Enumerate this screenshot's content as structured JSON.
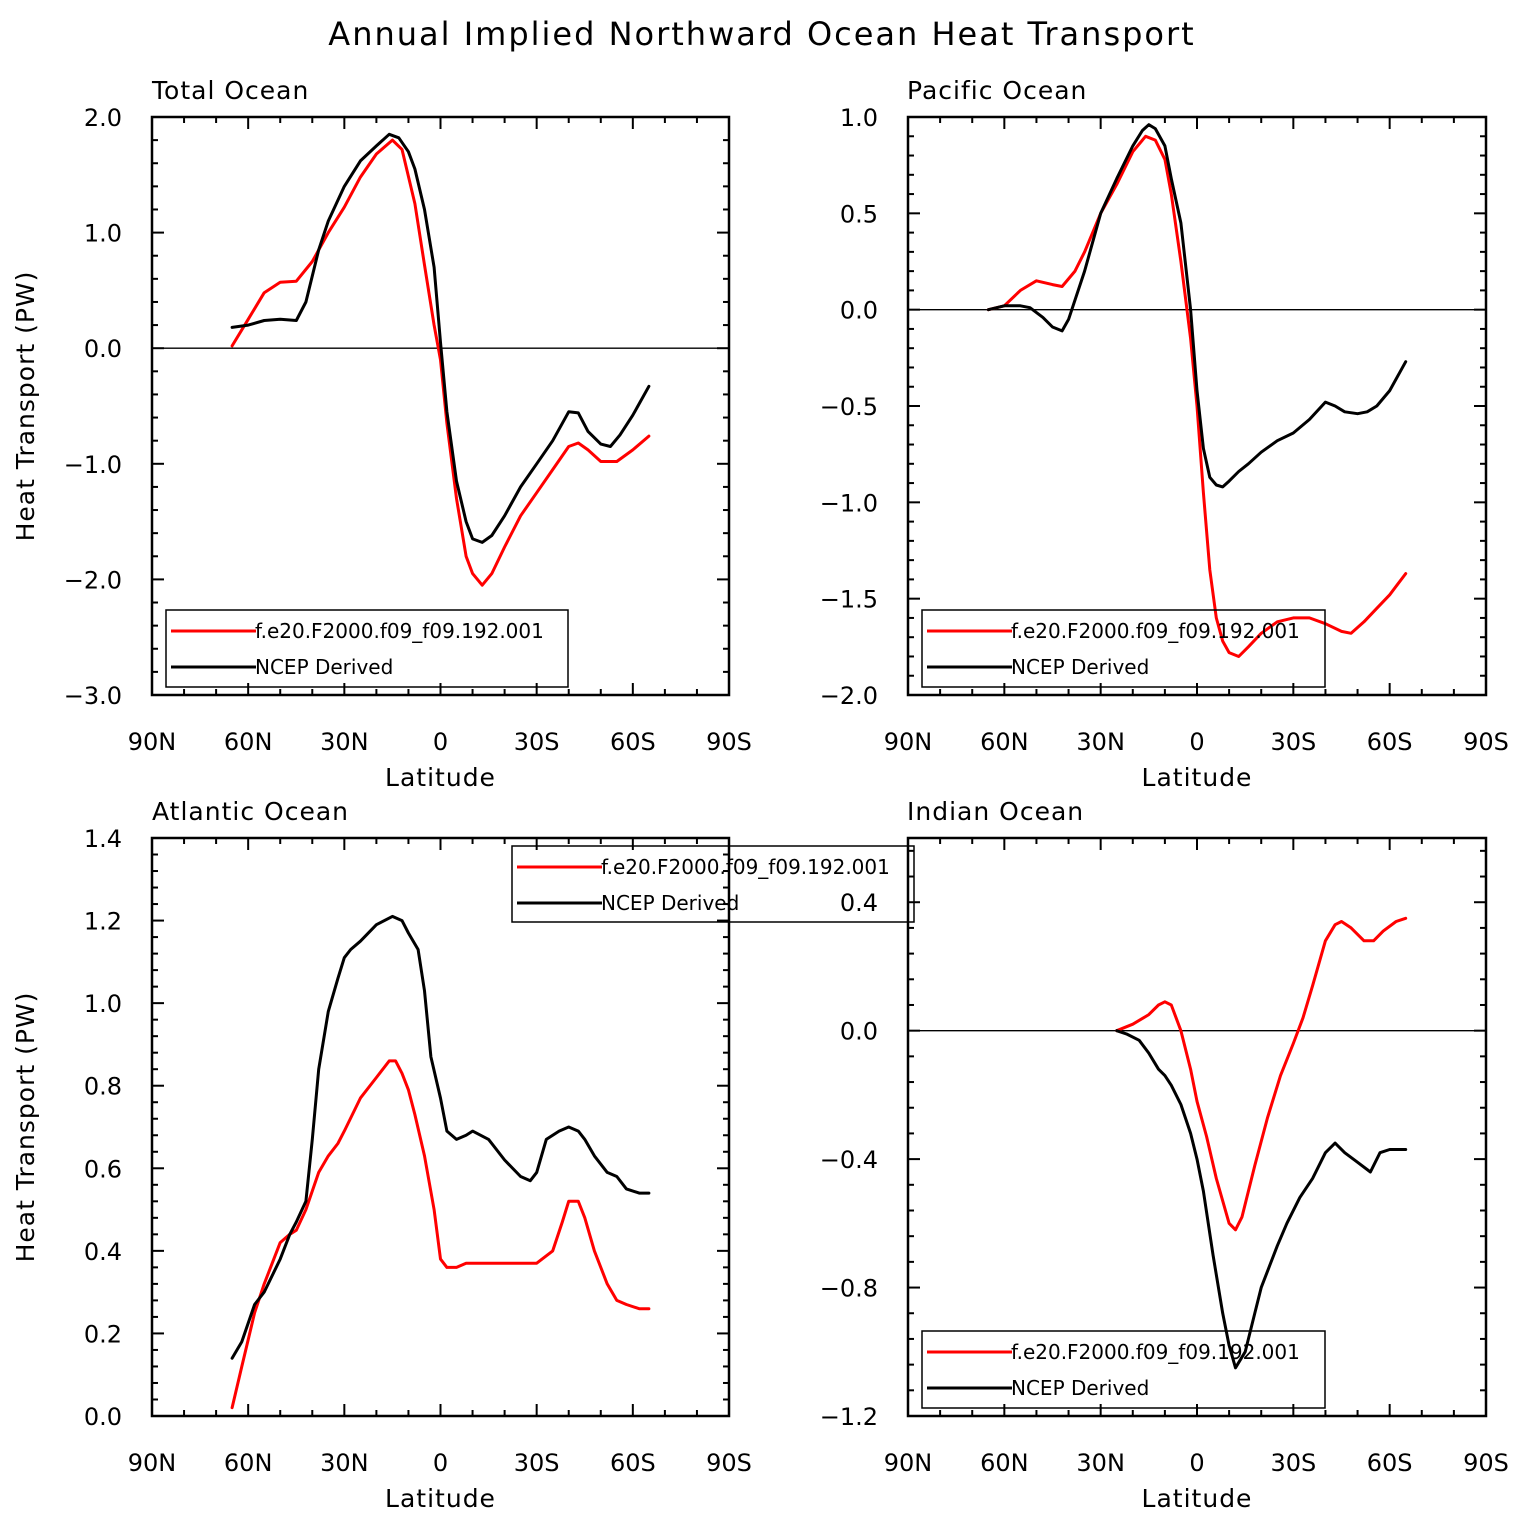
{
  "title": "Annual Implied Northward Ocean Heat Transport",
  "colors": {
    "model": "#ff0000",
    "obs": "#000000",
    "axis": "#000000"
  },
  "chart_data": [
    {
      "type": "line",
      "title": "Total Ocean",
      "xlabel": "Latitude",
      "ylabel": "Heat Transport (PW)",
      "xlim": [
        90,
        -90
      ],
      "ylim": [
        -3.0,
        2.0
      ],
      "x_ticks": [
        90,
        60,
        30,
        0,
        -30,
        -60,
        -90
      ],
      "x_tick_labels": [
        "90N",
        "60N",
        "30N",
        "0",
        "30S",
        "60S",
        "90S"
      ],
      "y_ticks": [
        -3.0,
        -2.0,
        -1.0,
        0.0,
        1.0,
        2.0
      ],
      "y_tick_labels": [
        "−3.0",
        "−2.0",
        "−1.0",
        "0.0",
        "1.0",
        "2.0"
      ],
      "legend_position": "bottom-left",
      "series": [
        {
          "name": "f.e20.F2000.f09_f09.192.001",
          "color": "#ff0000",
          "x": [
            65,
            60,
            55,
            50,
            45,
            40,
            35,
            30,
            25,
            20,
            15,
            12,
            8,
            5,
            2,
            0,
            -2,
            -5,
            -8,
            -10,
            -13,
            -16,
            -20,
            -25,
            -30,
            -35,
            -40,
            -43,
            -46,
            -50,
            -55,
            -60,
            -65
          ],
          "y": [
            0.02,
            0.25,
            0.48,
            0.57,
            0.58,
            0.75,
            1.0,
            1.22,
            1.48,
            1.68,
            1.8,
            1.72,
            1.25,
            0.72,
            0.2,
            -0.1,
            -0.65,
            -1.3,
            -1.8,
            -1.95,
            -2.05,
            -1.95,
            -1.72,
            -1.45,
            -1.25,
            -1.05,
            -0.85,
            -0.82,
            -0.88,
            -0.98,
            -0.98,
            -0.88,
            -0.76
          ]
        },
        {
          "name": "NCEP Derived",
          "color": "#000000",
          "x": [
            65,
            60,
            55,
            50,
            45,
            42,
            38,
            35,
            30,
            25,
            20,
            16,
            13,
            10,
            8,
            5,
            2,
            0,
            -2,
            -5,
            -8,
            -10,
            -13,
            -16,
            -20,
            -25,
            -30,
            -35,
            -40,
            -43,
            -46,
            -50,
            -53,
            -56,
            -60,
            -65
          ],
          "y": [
            0.18,
            0.2,
            0.24,
            0.25,
            0.24,
            0.4,
            0.85,
            1.1,
            1.4,
            1.62,
            1.75,
            1.85,
            1.82,
            1.7,
            1.55,
            1.2,
            0.7,
            0.05,
            -0.55,
            -1.15,
            -1.5,
            -1.65,
            -1.68,
            -1.62,
            -1.45,
            -1.2,
            -1.0,
            -0.8,
            -0.55,
            -0.56,
            -0.72,
            -0.83,
            -0.85,
            -0.75,
            -0.58,
            -0.33
          ]
        }
      ]
    },
    {
      "type": "line",
      "title": "Pacific Ocean",
      "xlabel": "Latitude",
      "ylabel": "",
      "xlim": [
        90,
        -90
      ],
      "ylim": [
        -2.0,
        1.0
      ],
      "x_ticks": [
        90,
        60,
        30,
        0,
        -30,
        -60,
        -90
      ],
      "x_tick_labels": [
        "90N",
        "60N",
        "30N",
        "0",
        "30S",
        "60S",
        "90S"
      ],
      "y_ticks": [
        -2.0,
        -1.5,
        -1.0,
        -0.5,
        0.0,
        0.5,
        1.0
      ],
      "y_tick_labels": [
        "−2.0",
        "−1.5",
        "−1.0",
        "−0.5",
        "0.0",
        "0.5",
        "1.0"
      ],
      "legend_position": "bottom-left",
      "series": [
        {
          "name": "f.e20.F2000.f09_f09.192.001",
          "color": "#ff0000",
          "x": [
            65,
            60,
            55,
            50,
            45,
            42,
            38,
            35,
            30,
            25,
            20,
            16,
            13,
            10,
            8,
            5,
            2,
            0,
            -2,
            -4,
            -6,
            -8,
            -10,
            -13,
            -16,
            -20,
            -25,
            -30,
            -35,
            -40,
            -45,
            -48,
            -52,
            -56,
            -60,
            -65
          ],
          "y": [
            0.0,
            0.02,
            0.1,
            0.15,
            0.13,
            0.12,
            0.2,
            0.3,
            0.5,
            0.65,
            0.82,
            0.9,
            0.88,
            0.78,
            0.6,
            0.25,
            -0.15,
            -0.5,
            -0.95,
            -1.35,
            -1.6,
            -1.72,
            -1.78,
            -1.8,
            -1.75,
            -1.68,
            -1.62,
            -1.6,
            -1.6,
            -1.63,
            -1.67,
            -1.68,
            -1.62,
            -1.55,
            -1.48,
            -1.37
          ]
        },
        {
          "name": "NCEP Derived",
          "color": "#000000",
          "x": [
            65,
            60,
            55,
            52,
            48,
            45,
            42,
            40,
            35,
            30,
            25,
            20,
            17,
            15,
            13,
            10,
            8,
            5,
            2,
            0,
            -2,
            -4,
            -6,
            -8,
            -10,
            -13,
            -16,
            -20,
            -25,
            -30,
            -35,
            -40,
            -43,
            -46,
            -50,
            -53,
            -56,
            -60,
            -65
          ],
          "y": [
            0.0,
            0.02,
            0.02,
            0.01,
            -0.04,
            -0.09,
            -0.11,
            -0.05,
            0.2,
            0.5,
            0.68,
            0.85,
            0.93,
            0.96,
            0.94,
            0.85,
            0.68,
            0.45,
            0.0,
            -0.42,
            -0.72,
            -0.87,
            -0.91,
            -0.92,
            -0.89,
            -0.84,
            -0.8,
            -0.74,
            -0.68,
            -0.64,
            -0.57,
            -0.48,
            -0.5,
            -0.53,
            -0.54,
            -0.53,
            -0.5,
            -0.42,
            -0.27
          ]
        }
      ]
    },
    {
      "type": "line",
      "title": "Atlantic Ocean",
      "xlabel": "Latitude",
      "ylabel": "Heat Transport (PW)",
      "xlim": [
        90,
        -90
      ],
      "ylim": [
        0.0,
        1.4
      ],
      "x_ticks": [
        90,
        60,
        30,
        0,
        -30,
        -60,
        -90
      ],
      "x_tick_labels": [
        "90N",
        "60N",
        "30N",
        "0",
        "30S",
        "60S",
        "90S"
      ],
      "y_ticks": [
        0.0,
        0.2,
        0.4,
        0.6,
        0.8,
        1.0,
        1.2,
        1.4
      ],
      "y_tick_labels": [
        "0.0",
        "0.2",
        "0.4",
        "0.6",
        "0.8",
        "1.0",
        "1.2",
        "1.4"
      ],
      "legend_position": "top-right",
      "series": [
        {
          "name": "f.e20.F2000.f09_f09.192.001",
          "color": "#ff0000",
          "x": [
            65,
            62,
            58,
            55,
            50,
            47,
            45,
            42,
            38,
            35,
            32,
            30,
            25,
            20,
            16,
            14,
            12,
            10,
            8,
            5,
            2,
            0,
            -2,
            -5,
            -8,
            -10,
            -15,
            -20,
            -25,
            -30,
            -35,
            -38,
            -40,
            -43,
            -45,
            -48,
            -52,
            -55,
            -58,
            -62,
            -65
          ],
          "y": [
            0.02,
            0.12,
            0.25,
            0.32,
            0.42,
            0.44,
            0.45,
            0.5,
            0.59,
            0.63,
            0.66,
            0.69,
            0.77,
            0.82,
            0.86,
            0.86,
            0.83,
            0.79,
            0.73,
            0.63,
            0.5,
            0.38,
            0.36,
            0.36,
            0.37,
            0.37,
            0.37,
            0.37,
            0.37,
            0.37,
            0.4,
            0.47,
            0.52,
            0.52,
            0.48,
            0.4,
            0.32,
            0.28,
            0.27,
            0.26,
            0.26
          ]
        },
        {
          "name": "NCEP Derived",
          "color": "#000000",
          "x": [
            65,
            62,
            58,
            55,
            50,
            47,
            45,
            42,
            40,
            38,
            35,
            32,
            30,
            28,
            25,
            20,
            15,
            12,
            10,
            7,
            5,
            3,
            0,
            -2,
            -5,
            -8,
            -10,
            -15,
            -20,
            -25,
            -28,
            -30,
            -33,
            -37,
            -40,
            -43,
            -45,
            -48,
            -52,
            -55,
            -58,
            -62,
            -65
          ],
          "y": [
            0.14,
            0.18,
            0.27,
            0.3,
            0.38,
            0.44,
            0.47,
            0.52,
            0.67,
            0.84,
            0.98,
            1.06,
            1.11,
            1.13,
            1.15,
            1.19,
            1.21,
            1.2,
            1.17,
            1.13,
            1.03,
            0.87,
            0.77,
            0.69,
            0.67,
            0.68,
            0.69,
            0.67,
            0.62,
            0.58,
            0.57,
            0.59,
            0.67,
            0.69,
            0.7,
            0.69,
            0.67,
            0.63,
            0.59,
            0.58,
            0.55,
            0.54,
            0.54
          ]
        }
      ]
    },
    {
      "type": "line",
      "title": "Indian Ocean",
      "xlabel": "Latitude",
      "ylabel": "",
      "xlim": [
        90,
        -90
      ],
      "ylim": [
        -1.2,
        0.6
      ],
      "x_ticks": [
        90,
        60,
        30,
        0,
        -30,
        -60,
        -90
      ],
      "x_tick_labels": [
        "90N",
        "60N",
        "30N",
        "0",
        "30S",
        "60S",
        "90S"
      ],
      "y_ticks": [
        -1.2,
        -0.8,
        -0.4,
        0.0,
        0.4
      ],
      "y_tick_labels": [
        "−1.2",
        "−0.8",
        "−0.4",
        "0.0",
        "0.4"
      ],
      "legend_position": "bottom-left",
      "series": [
        {
          "name": "f.e20.F2000.f09_f09.192.001",
          "color": "#ff0000",
          "x": [
            25,
            20,
            15,
            12,
            10,
            8,
            5,
            2,
            0,
            -3,
            -6,
            -10,
            -12,
            -14,
            -18,
            -22,
            -26,
            -30,
            -33,
            -36,
            -40,
            -43,
            -45,
            -48,
            -52,
            -55,
            -58,
            -62,
            -65
          ],
          "y": [
            0.0,
            0.02,
            0.05,
            0.08,
            0.09,
            0.08,
            0.0,
            -0.12,
            -0.22,
            -0.33,
            -0.46,
            -0.6,
            -0.62,
            -0.58,
            -0.42,
            -0.27,
            -0.14,
            -0.04,
            0.04,
            0.14,
            0.28,
            0.33,
            0.34,
            0.32,
            0.28,
            0.28,
            0.31,
            0.34,
            0.35
          ]
        },
        {
          "name": "NCEP Derived",
          "color": "#000000",
          "x": [
            25,
            22,
            18,
            15,
            12,
            10,
            8,
            5,
            2,
            0,
            -2,
            -5,
            -8,
            -10,
            -12,
            -15,
            -18,
            -20,
            -25,
            -28,
            -32,
            -36,
            -40,
            -43,
            -46,
            -50,
            -54,
            -57,
            -60,
            -65
          ],
          "y": [
            0.0,
            -0.01,
            -0.03,
            -0.07,
            -0.12,
            -0.14,
            -0.17,
            -0.23,
            -0.32,
            -0.4,
            -0.5,
            -0.7,
            -0.88,
            -0.98,
            -1.05,
            -1.0,
            -0.88,
            -0.8,
            -0.67,
            -0.6,
            -0.52,
            -0.46,
            -0.38,
            -0.35,
            -0.38,
            -0.41,
            -0.44,
            -0.38,
            -0.37,
            -0.37
          ]
        }
      ]
    }
  ]
}
